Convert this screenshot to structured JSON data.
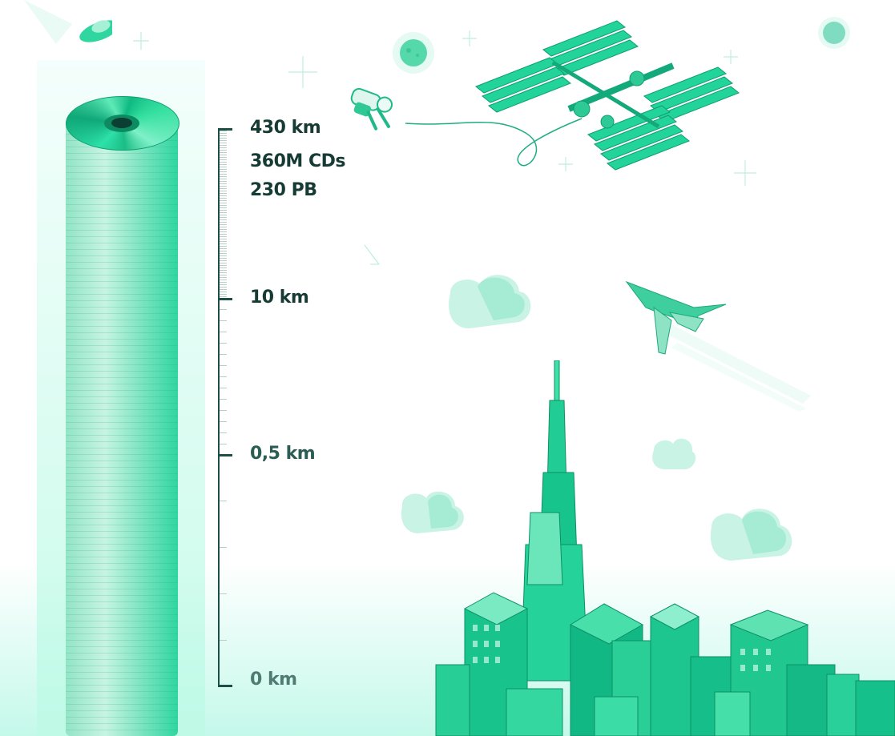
{
  "scale": {
    "top_label": "430 km",
    "top_count": "360M CDs",
    "top_size": "230 PB",
    "mark_10": "10 km",
    "mark_05": "0,5 km",
    "mark_0": "0 km"
  },
  "colors": {
    "accent": "#18c98e",
    "dark_text": "#163b34",
    "ruler": "#1c4f46",
    "mint": "#c9f6e6"
  },
  "illustrations": [
    "cd-stack",
    "space-station",
    "astronaut",
    "ufo",
    "planet",
    "jet-plane",
    "clouds",
    "skyscraper",
    "city"
  ]
}
